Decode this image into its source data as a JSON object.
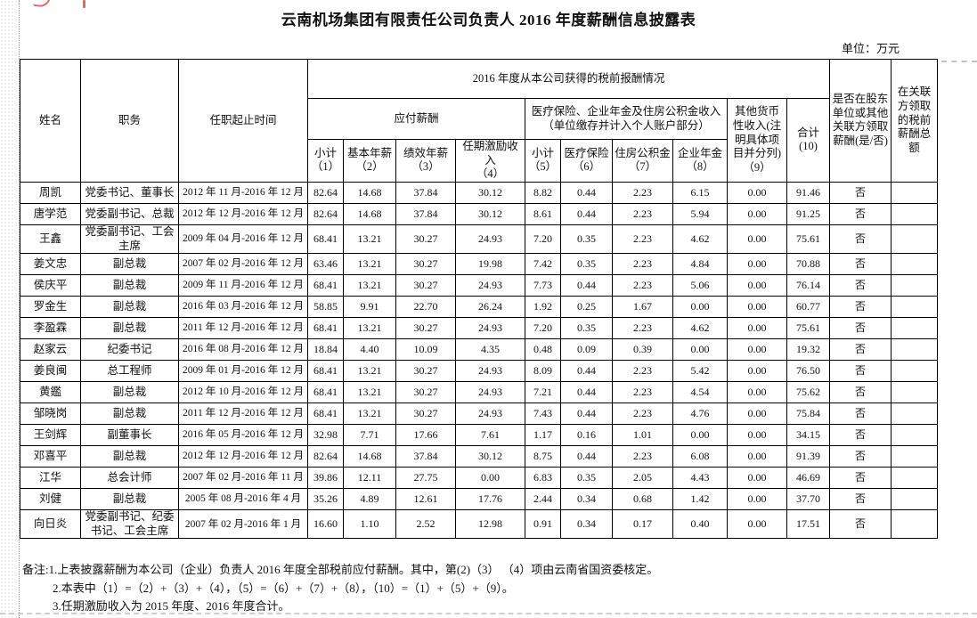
{
  "page": {
    "title": "云南机场集团有限责任公司负责人 2016 年度薪酬信息披露表",
    "unit_label": "单位：万元"
  },
  "colors": {
    "ink_red": "#e06a6a",
    "boundary_gray": "#c3c3c3",
    "table_border": "#000000"
  },
  "table": {
    "headers": {
      "name": "姓名",
      "position": "职务",
      "term": "任职起止时间",
      "pretax_group": "2016 年度从本公司获得的税前报酬情况",
      "payable_group": "应付薪酬",
      "insurance_group": "医疗保险、企业年金及住房公积金收入（单位缴存并计入个人账户部分）",
      "other_income": "其他货币性收入(注明具体项目并分列)（9）",
      "total_label": "合计",
      "total_num": "(10)",
      "related_party": "是否在股东单位或其他关联方领取薪酬(是/否)",
      "related_amount": "在关联方领取的税前薪酬总额",
      "sub": [
        {
          "label": "小计",
          "num": "（1）"
        },
        {
          "label": "基本年薪",
          "num": "（2）"
        },
        {
          "label": "绩效年薪",
          "num": "（3）"
        },
        {
          "label": "任期激励收入",
          "num": "（4）"
        },
        {
          "label": "小计",
          "num": "（5）"
        },
        {
          "label": "医疗保险",
          "num": "（6）"
        },
        {
          "label": "住房公积金",
          "num": "（7）"
        },
        {
          "label": "企业年金",
          "num": "（8）"
        }
      ]
    },
    "rows": [
      {
        "name": "周凯",
        "position": "党委书记、董事长",
        "term": "2012 年 11 月-2016 年 12 月",
        "values": [
          "82.64",
          "14.68",
          "37.84",
          "30.12",
          "8.82",
          "0.44",
          "2.23",
          "6.15",
          "0.00",
          "91.46"
        ],
        "related": "否",
        "related_amount": ""
      },
      {
        "name": "唐学范",
        "position": "党委副书记、总裁",
        "term": "2012 年 12 月-2016 年 12 月",
        "values": [
          "82.64",
          "14.68",
          "37.84",
          "30.12",
          "8.61",
          "0.44",
          "2.23",
          "5.94",
          "0.00",
          "91.25"
        ],
        "related": "否",
        "related_amount": ""
      },
      {
        "name": "王鑫",
        "position": "党委副书记、工会主席",
        "term": "2009 年 04 月-2016 年 12 月",
        "values": [
          "68.41",
          "13.21",
          "30.27",
          "24.93",
          "7.20",
          "0.35",
          "2.23",
          "4.62",
          "0.00",
          "75.61"
        ],
        "related": "否",
        "related_amount": ""
      },
      {
        "name": "姜文忠",
        "position": "副总裁",
        "term": "2007 年 02 月-2016 年 12 月",
        "values": [
          "63.46",
          "13.21",
          "30.27",
          "19.98",
          "7.42",
          "0.35",
          "2.23",
          "4.84",
          "0.00",
          "70.88"
        ],
        "related": "否",
        "related_amount": ""
      },
      {
        "name": "侯庆平",
        "position": "副总裁",
        "term": "2009 年 11 月-2016 年 12 月",
        "values": [
          "68.41",
          "13.21",
          "30.27",
          "24.93",
          "7.73",
          "0.44",
          "2.23",
          "5.06",
          "0.00",
          "76.14"
        ],
        "related": "否",
        "related_amount": ""
      },
      {
        "name": "罗金生",
        "position": "副总裁",
        "term": "2016 年 03 月-2016 年 12 月",
        "values": [
          "58.85",
          "9.91",
          "22.70",
          "26.24",
          "1.92",
          "0.25",
          "1.67",
          "0.00",
          "0.00",
          "60.77"
        ],
        "related": "否",
        "related_amount": ""
      },
      {
        "name": "李盈霖",
        "position": "副总裁",
        "term": "2011 年 12 月-2016 年 12 月",
        "values": [
          "68.41",
          "13.21",
          "30.27",
          "24.93",
          "7.20",
          "0.35",
          "2.23",
          "4.62",
          "0.00",
          "75.61"
        ],
        "related": "否",
        "related_amount": ""
      },
      {
        "name": "赵家云",
        "position": "纪委书记",
        "term": "2016 年 08 月-2016 年 12 月",
        "values": [
          "18.84",
          "4.40",
          "10.09",
          "4.35",
          "0.48",
          "0.09",
          "0.39",
          "0.00",
          "0.00",
          "19.32"
        ],
        "related": "否",
        "related_amount": ""
      },
      {
        "name": "姜良闽",
        "position": "总工程师",
        "term": "2009 年 01 月-2016 年 12 月",
        "values": [
          "68.41",
          "13.21",
          "30.27",
          "24.93",
          "8.09",
          "0.44",
          "2.23",
          "5.42",
          "0.00",
          "76.50"
        ],
        "related": "否",
        "related_amount": ""
      },
      {
        "name": "黄鑑",
        "position": "副总裁",
        "term": "2012 年 10 月-2016 年 12 月",
        "values": [
          "68.41",
          "13.21",
          "30.27",
          "24.93",
          "7.21",
          "0.44",
          "2.23",
          "4.54",
          "0.00",
          "75.62"
        ],
        "related": "否",
        "related_amount": ""
      },
      {
        "name": "邹晓岗",
        "position": "副总裁",
        "term": "2011 年 12 月-2016 年 12 月",
        "values": [
          "68.41",
          "13.21",
          "30.27",
          "24.93",
          "7.43",
          "0.44",
          "2.23",
          "4.76",
          "0.00",
          "75.84"
        ],
        "related": "否",
        "related_amount": ""
      },
      {
        "name": "王剑辉",
        "position": "副董事长",
        "term": "2016 年 05 月-2016 年 12 月",
        "values": [
          "32.98",
          "7.71",
          "17.66",
          "7.61",
          "1.17",
          "0.16",
          "1.01",
          "0.00",
          "0.00",
          "34.15"
        ],
        "related": "否",
        "related_amount": ""
      },
      {
        "name": "邓喜平",
        "position": "副总裁",
        "term": "2012 年 12 月-2016 年 12 月",
        "values": [
          "82.64",
          "14.68",
          "37.84",
          "30.12",
          "8.75",
          "0.44",
          "2.23",
          "6.08",
          "0.00",
          "91.39"
        ],
        "related": "否",
        "related_amount": ""
      },
      {
        "name": "江华",
        "position": "总会计师",
        "term": "2007 年 02 月-2016 年 11 月",
        "values": [
          "39.86",
          "12.11",
          "27.75",
          "0.00",
          "6.83",
          "0.35",
          "2.05",
          "4.43",
          "0.00",
          "46.69"
        ],
        "related": "否",
        "related_amount": ""
      },
      {
        "name": "刘健",
        "position": "副总裁",
        "term": "2005 年 08 月-2016 年 4 月",
        "values": [
          "35.26",
          "4.89",
          "12.61",
          "17.76",
          "2.44",
          "0.34",
          "0.68",
          "1.42",
          "0.00",
          "37.70"
        ],
        "related": "否",
        "related_amount": ""
      },
      {
        "name": "向日炎",
        "position": "党委副书记、纪委书记、工会主席",
        "term": "2007 年 02 月-2016 年 1 月",
        "values": [
          "16.60",
          "1.10",
          "2.52",
          "12.98",
          "0.91",
          "0.34",
          "0.17",
          "0.40",
          "0.00",
          "17.51"
        ],
        "related": "否",
        "related_amount": ""
      }
    ]
  },
  "notes": {
    "line1": "备注:1.上表披露薪酬为本公司（企业）负责人 2016 年度全部税前应付薪酬。其中，第(2)（3） （4）项由云南省国资委核定。",
    "line2": "2.本表中（1）=（2）+（3）+（4），（5）=（6）+（7）+（8），（10）=（1）+（5）+（9）。",
    "line3": "3.任期激励收入为 2015 年度、2016 年度合计。"
  }
}
